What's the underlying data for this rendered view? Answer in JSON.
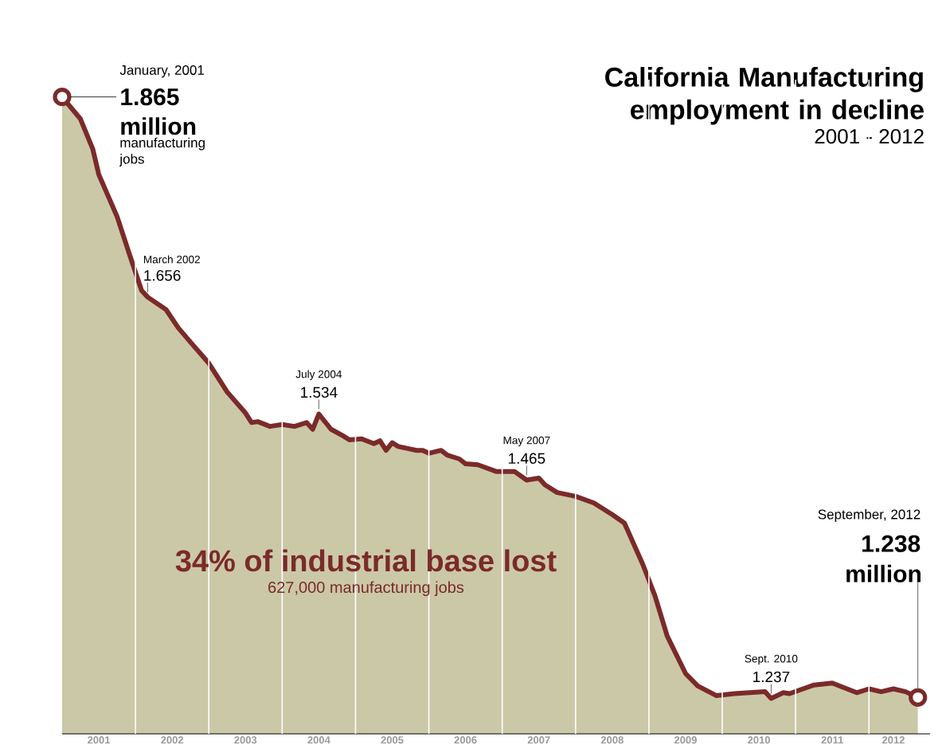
{
  "chart_data": {
    "type": "area",
    "title": "California Manufacturing employment in decline",
    "subtitle": "2001 - 2012",
    "x": [
      "2001-01",
      "2001-04",
      "2001-06",
      "2001-07",
      "2001-10",
      "2001-12",
      "2002-02",
      "2002-03",
      "2002-06",
      "2002-08",
      "2002-10",
      "2003-01",
      "2003-04",
      "2003-07",
      "2003-08",
      "2003-09",
      "2003-11",
      "2004-01",
      "2004-03",
      "2004-05",
      "2004-06",
      "2004-07",
      "2004-09",
      "2004-11",
      "2004-12",
      "2005-02",
      "2005-04",
      "2005-05",
      "2005-06",
      "2005-07",
      "2005-08",
      "2005-11",
      "2005-12",
      "2006-01",
      "2006-03",
      "2006-04",
      "2006-06",
      "2006-07",
      "2006-09",
      "2006-12",
      "2007-03",
      "2007-05",
      "2007-07",
      "2007-08",
      "2007-10",
      "2008-01",
      "2008-04",
      "2008-07",
      "2008-09",
      "2008-12",
      "2009-02",
      "2009-04",
      "2009-07",
      "2009-09",
      "2009-12",
      "2010-03",
      "2010-08",
      "2010-09",
      "2010-11",
      "2010-12",
      "2011-04",
      "2011-07",
      "2011-09",
      "2011-11",
      "2012-01",
      "2012-03",
      "2012-05",
      "2012-07",
      "2012-09"
    ],
    "series": [
      {
        "color": "#cbc8a8",
        "values": [
          1.865,
          1.842,
          1.811,
          1.784,
          1.74,
          1.701,
          1.663,
          1.656,
          1.643,
          1.624,
          1.609,
          1.587,
          1.557,
          1.535,
          1.525,
          1.526,
          1.521,
          1.523,
          1.521,
          1.525,
          1.518,
          1.534,
          1.518,
          1.511,
          1.507,
          1.508,
          1.503,
          1.506,
          1.496,
          1.504,
          1.5,
          1.496,
          1.496,
          1.493,
          1.496,
          1.491,
          1.487,
          1.482,
          1.481,
          1.474,
          1.474,
          1.465,
          1.467,
          1.46,
          1.452,
          1.448,
          1.441,
          1.429,
          1.42,
          1.377,
          1.344,
          1.302,
          1.263,
          1.25,
          1.24,
          1.242,
          1.244,
          1.237,
          1.243,
          1.242,
          1.251,
          1.253,
          1.248,
          1.243,
          1.247,
          1.244,
          1.247,
          1.244,
          1.238
        ],
        "value_labels": [
          "1.865",
          null,
          null,
          null,
          null,
          null,
          null,
          "1.656",
          null,
          null,
          null,
          null,
          null,
          null,
          null,
          null,
          null,
          null,
          null,
          null,
          null,
          "1.534",
          null,
          null,
          null,
          null,
          null,
          null,
          null,
          null,
          null,
          null,
          null,
          null,
          null,
          null,
          null,
          null,
          null,
          null,
          null,
          "1.465",
          null,
          null,
          null,
          null,
          null,
          null,
          null,
          null,
          null,
          null,
          null,
          null,
          null,
          null,
          null,
          "1.237",
          null,
          null,
          null,
          null,
          null,
          null,
          null,
          null,
          null,
          null,
          "1.238"
        ]
      }
    ],
    "xlim": [
      "2001-01",
      "2012-11"
    ],
    "ylim": [
      1.2,
      1.883
    ],
    "xticks": [
      {
        "value": "2001-07",
        "label": "2001"
      },
      {
        "value": "2002-07",
        "label": "2002"
      },
      {
        "value": "2003-07",
        "label": "2003"
      },
      {
        "value": "2004-07",
        "label": "2004"
      },
      {
        "value": "2005-07",
        "label": "2005"
      },
      {
        "value": "2006-07",
        "label": "2006"
      },
      {
        "value": "2007-07",
        "label": "2007"
      },
      {
        "value": "2008-07",
        "label": "2008"
      },
      {
        "value": "2009-07",
        "label": "2009"
      },
      {
        "value": "2010-07",
        "label": "2010"
      },
      {
        "value": "2011-07",
        "label": "2011"
      },
      {
        "value": "2012-05",
        "label": "2012"
      },
      {
        "value": "2002-01",
        "label": null
      },
      {
        "value": "2003-01",
        "label": null
      },
      {
        "value": "2004-01",
        "label": null
      },
      {
        "value": "2005-01",
        "label": null
      },
      {
        "value": "2006-01",
        "label": null
      },
      {
        "value": "2007-01",
        "label": null
      },
      {
        "value": "2008-01",
        "label": null
      },
      {
        "value": "2009-01",
        "label": null
      },
      {
        "value": "2010-01",
        "label": null
      },
      {
        "value": "2011-01",
        "label": null
      },
      {
        "value": "2012-01",
        "label": null
      }
    ],
    "grid": "x",
    "tick_labels": "x",
    "annotations": [
      "January, 2001",
      "million",
      "manufacturing jobs",
      "March 2002",
      "July 2004",
      "May 2007",
      "34% of industrial base lost",
      "627,000 manufacturing jobs",
      "Sept. 2010",
      "September, 2012",
      "million"
    ]
  }
}
